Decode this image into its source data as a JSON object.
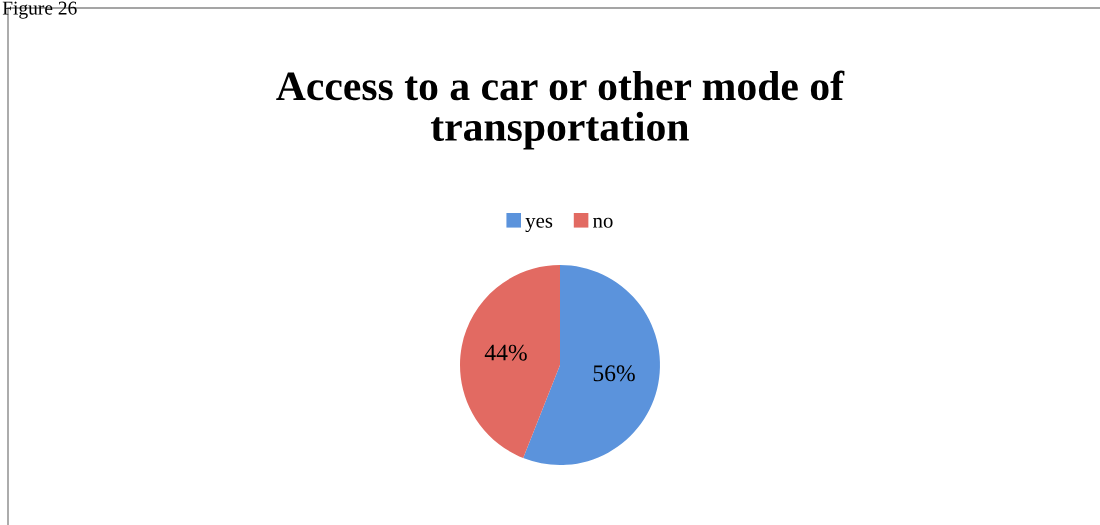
{
  "chart_data": {
    "type": "pie",
    "title": "Access to a car or other mode of\ntransportation",
    "categories": [
      "yes",
      "no"
    ],
    "values": [
      56,
      44
    ],
    "colors": [
      "#5b93dc",
      "#e26a62"
    ],
    "value_labels": [
      "56%",
      "44%"
    ],
    "legend": "top",
    "annotations": [
      "Figure 26"
    ]
  }
}
